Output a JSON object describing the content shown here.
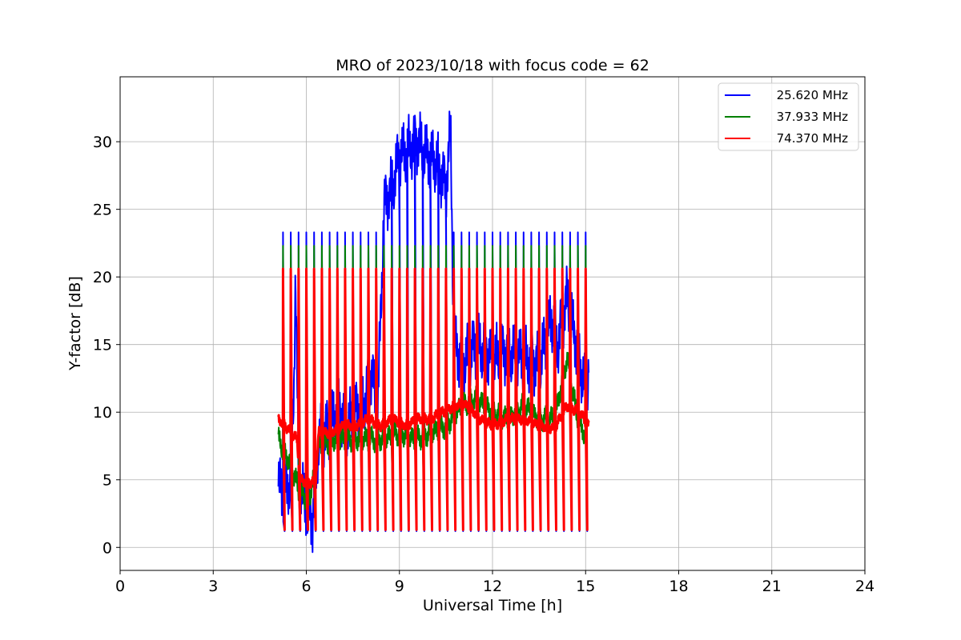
{
  "chart_data": {
    "type": "line",
    "title": "MRO of 2023/10/18 with focus code = 62",
    "xlabel": "Universal Time [h]",
    "ylabel": "Y-factor [dB]",
    "xlim": [
      0,
      24
    ],
    "ylim": [
      -1.7,
      34.8
    ],
    "xticks": [
      0,
      3,
      6,
      9,
      12,
      15,
      18,
      21,
      24
    ],
    "yticks": [
      0,
      5,
      10,
      15,
      20,
      25,
      30
    ],
    "grid": true,
    "legend_position": "top-right",
    "series": [
      {
        "name": "25.620 MHz",
        "color": "#0000ff",
        "pulse_peak": 23.3,
        "pulse_floor": 1.2,
        "pulse_times": [
          5.25,
          5.5,
          5.75,
          6.0,
          6.25,
          6.5,
          6.75,
          7.0,
          7.25,
          7.5,
          7.75,
          8.0,
          8.25,
          8.5,
          8.75,
          9.0,
          9.25,
          9.5,
          9.75,
          10.0,
          10.25,
          10.5,
          10.75,
          11.0,
          11.25,
          11.5,
          11.75,
          12.0,
          12.25,
          12.5,
          12.75,
          13.0,
          13.25,
          13.5,
          13.75,
          14.0,
          14.25,
          14.5,
          14.75,
          15.0
        ],
        "baseline": [
          {
            "x": 5.1,
            "y": 4.5
          },
          {
            "x": 5.3,
            "y": 4.2
          },
          {
            "x": 5.5,
            "y": 5.0
          },
          {
            "x": 5.6,
            "y": 12.0
          },
          {
            "x": 5.65,
            "y": 20.3
          },
          {
            "x": 5.75,
            "y": 5.0
          },
          {
            "x": 6.0,
            "y": 3.0
          },
          {
            "x": 6.2,
            "y": 2.0
          },
          {
            "x": 6.4,
            "y": 8.0
          },
          {
            "x": 6.8,
            "y": 9.0
          },
          {
            "x": 7.0,
            "y": 10.5
          },
          {
            "x": 7.3,
            "y": 9.0
          },
          {
            "x": 7.6,
            "y": 10.0
          },
          {
            "x": 7.9,
            "y": 11.0
          },
          {
            "x": 8.1,
            "y": 13.0
          },
          {
            "x": 8.3,
            "y": 10.0
          },
          {
            "x": 8.5,
            "y": 25.0
          },
          {
            "x": 8.8,
            "y": 27.0
          },
          {
            "x": 9.0,
            "y": 29.0
          },
          {
            "x": 9.3,
            "y": 29.5
          },
          {
            "x": 9.6,
            "y": 30.0
          },
          {
            "x": 9.9,
            "y": 29.0
          },
          {
            "x": 10.2,
            "y": 28.5
          },
          {
            "x": 10.5,
            "y": 26.5
          },
          {
            "x": 10.65,
            "y": 31.0
          },
          {
            "x": 10.75,
            "y": 15.5
          },
          {
            "x": 11.0,
            "y": 13.5
          },
          {
            "x": 11.5,
            "y": 15.0
          },
          {
            "x": 12.0,
            "y": 14.0
          },
          {
            "x": 12.5,
            "y": 14.5
          },
          {
            "x": 13.0,
            "y": 14.0
          },
          {
            "x": 13.5,
            "y": 13.5
          },
          {
            "x": 13.9,
            "y": 17.0
          },
          {
            "x": 14.1,
            "y": 15.0
          },
          {
            "x": 14.4,
            "y": 18.5
          },
          {
            "x": 14.7,
            "y": 15.0
          },
          {
            "x": 15.0,
            "y": 11.5
          },
          {
            "x": 15.1,
            "y": 13.0
          }
        ]
      },
      {
        "name": "37.933 MHz",
        "color": "#008000",
        "pulse_peak": 22.3,
        "pulse_floor": 1.5,
        "pulse_times": [
          5.25,
          5.5,
          5.75,
          6.0,
          6.25,
          6.5,
          6.75,
          7.0,
          7.25,
          7.5,
          7.75,
          8.0,
          8.25,
          8.5,
          8.75,
          9.0,
          9.25,
          9.5,
          9.75,
          10.0,
          10.25,
          10.5,
          10.75,
          11.0,
          11.25,
          11.5,
          11.75,
          12.0,
          12.25,
          12.5,
          12.75,
          13.0,
          13.25,
          13.5,
          13.75,
          14.0,
          14.25,
          14.5,
          14.75,
          15.0
        ],
        "baseline": [
          {
            "x": 5.1,
            "y": 8.0
          },
          {
            "x": 5.3,
            "y": 7.0
          },
          {
            "x": 5.5,
            "y": 6.0
          },
          {
            "x": 5.8,
            "y": 4.0
          },
          {
            "x": 6.1,
            "y": 3.5
          },
          {
            "x": 6.4,
            "y": 7.5
          },
          {
            "x": 7.0,
            "y": 8.0
          },
          {
            "x": 7.5,
            "y": 8.0
          },
          {
            "x": 8.0,
            "y": 8.0
          },
          {
            "x": 8.5,
            "y": 8.0
          },
          {
            "x": 9.0,
            "y": 8.5
          },
          {
            "x": 9.5,
            "y": 8.0
          },
          {
            "x": 10.0,
            "y": 8.5
          },
          {
            "x": 10.5,
            "y": 9.0
          },
          {
            "x": 11.0,
            "y": 10.5
          },
          {
            "x": 11.5,
            "y": 11.0
          },
          {
            "x": 12.0,
            "y": 10.0
          },
          {
            "x": 12.5,
            "y": 9.5
          },
          {
            "x": 13.0,
            "y": 10.5
          },
          {
            "x": 13.5,
            "y": 9.5
          },
          {
            "x": 14.0,
            "y": 9.5
          },
          {
            "x": 14.4,
            "y": 14.0
          },
          {
            "x": 14.7,
            "y": 10.0
          },
          {
            "x": 15.0,
            "y": 8.0
          }
        ]
      },
      {
        "name": "74.370 MHz",
        "color": "#ff0000",
        "pulse_peak": 20.6,
        "pulse_floor": 1.3,
        "pulse_times": [
          5.25,
          5.5,
          5.75,
          6.0,
          6.25,
          6.5,
          6.75,
          7.0,
          7.25,
          7.5,
          7.75,
          8.0,
          8.25,
          8.5,
          8.75,
          9.0,
          9.25,
          9.5,
          9.75,
          10.0,
          10.25,
          10.5,
          10.75,
          11.0,
          11.25,
          11.5,
          11.75,
          12.0,
          12.25,
          12.5,
          12.75,
          13.0,
          13.25,
          13.5,
          13.75,
          14.0,
          14.25,
          14.5,
          14.75,
          15.0
        ],
        "baseline": [
          {
            "x": 5.1,
            "y": 9.5
          },
          {
            "x": 5.4,
            "y": 8.8
          },
          {
            "x": 5.7,
            "y": 8.0
          },
          {
            "x": 5.8,
            "y": 5.0
          },
          {
            "x": 6.1,
            "y": 4.8
          },
          {
            "x": 6.3,
            "y": 4.8
          },
          {
            "x": 6.4,
            "y": 8.5
          },
          {
            "x": 6.8,
            "y": 8.5
          },
          {
            "x": 7.2,
            "y": 9.0
          },
          {
            "x": 7.6,
            "y": 9.0
          },
          {
            "x": 8.0,
            "y": 9.5
          },
          {
            "x": 8.4,
            "y": 9.0
          },
          {
            "x": 8.8,
            "y": 9.5
          },
          {
            "x": 9.2,
            "y": 9.0
          },
          {
            "x": 9.6,
            "y": 9.5
          },
          {
            "x": 10.0,
            "y": 9.5
          },
          {
            "x": 10.4,
            "y": 10.0
          },
          {
            "x": 10.8,
            "y": 10.5
          },
          {
            "x": 11.2,
            "y": 10.5
          },
          {
            "x": 11.6,
            "y": 9.5
          },
          {
            "x": 12.0,
            "y": 9.0
          },
          {
            "x": 12.5,
            "y": 9.5
          },
          {
            "x": 13.0,
            "y": 9.5
          },
          {
            "x": 13.5,
            "y": 9.0
          },
          {
            "x": 14.0,
            "y": 8.8
          },
          {
            "x": 14.4,
            "y": 10.5
          },
          {
            "x": 14.8,
            "y": 10.0
          },
          {
            "x": 15.1,
            "y": 9.0
          }
        ]
      }
    ]
  }
}
